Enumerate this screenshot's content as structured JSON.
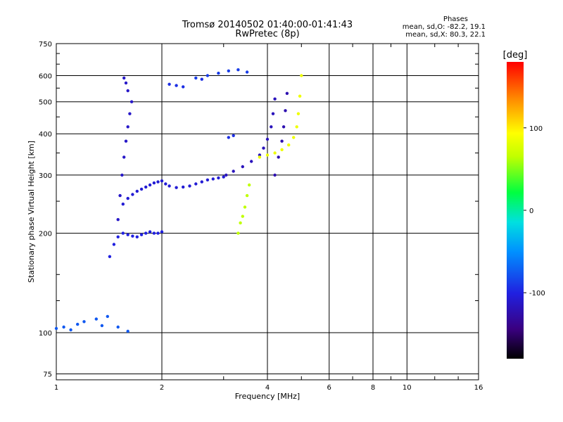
{
  "header": {
    "title": "Tromsø 20140502 01:40:00-01:41:43",
    "subtitle": "RwPretec (8p)",
    "stats_title": "Phases",
    "stats_o": "mean, sd,O: -82.2, 19.1",
    "stats_x": "mean, sd,X: 80.3, 22.1"
  },
  "chart_data": {
    "type": "scatter",
    "title": "Tromsø 20140502 01:40:00-01:41:43",
    "subtitle": "RwPretec (8p)",
    "xlabel": "Frequency [MHz]",
    "ylabel": "Stationary phase Virtual Height [km]",
    "x_scale": "log",
    "y_scale": "log",
    "xlim": [
      1,
      16
    ],
    "ylim": [
      72,
      750
    ],
    "x_ticks": [
      1,
      2,
      4,
      6,
      8,
      10,
      16
    ],
    "x_tick_labels": [
      "1",
      "2",
      "4",
      "6",
      "8",
      "10",
      "16"
    ],
    "y_ticks": [
      75,
      100,
      200,
      300,
      400,
      500,
      600,
      750
    ],
    "y_tick_labels": [
      "75",
      "100",
      "200",
      "300",
      "400",
      "500",
      "600",
      "750"
    ],
    "grid": true,
    "colorbar": {
      "label": "[deg]",
      "range": [
        -180,
        180
      ],
      "ticks": [
        100,
        0,
        -100
      ],
      "tick_labels": [
        "100",
        "0",
        "-100"
      ],
      "colormap": [
        "#000000",
        "#3a0080",
        "#2020e0",
        "#0090ff",
        "#00e0e0",
        "#00ff40",
        "#c0ff00",
        "#ffff00",
        "#ff9000",
        "#ff0000"
      ]
    },
    "traces": [
      {
        "name": "o_low_F",
        "phase": -100,
        "x": [
          1.42,
          1.46,
          1.5,
          1.55,
          1.6,
          1.65,
          1.7,
          1.75,
          1.8,
          1.85,
          1.9,
          1.95,
          2.0
        ],
        "y": [
          170,
          185,
          195,
          200,
          198,
          196,
          195,
          198,
          200,
          202,
          200,
          200,
          202
        ]
      },
      {
        "name": "o_F_band",
        "phase": -105,
        "x": [
          1.55,
          1.6,
          1.65,
          1.7,
          1.75,
          1.8,
          1.85,
          1.9,
          1.95,
          2.0,
          2.05,
          2.1,
          2.2,
          2.3,
          2.4,
          2.5,
          2.6,
          2.7,
          2.8,
          2.9,
          3.0
        ],
        "y": [
          245,
          255,
          262,
          268,
          272,
          276,
          280,
          284,
          286,
          288,
          282,
          278,
          275,
          276,
          278,
          282,
          286,
          290,
          292,
          294,
          296
        ]
      },
      {
        "name": "o_F_column",
        "phase": -110,
        "x": [
          1.5,
          1.52,
          1.54,
          1.56,
          1.58,
          1.6,
          1.62,
          1.64,
          1.6,
          1.58,
          1.56
        ],
        "y": [
          220,
          260,
          300,
          340,
          380,
          420,
          460,
          500,
          540,
          570,
          590
        ]
      },
      {
        "name": "o_F2_upper",
        "phase": -115,
        "x": [
          3.05,
          3.2,
          3.4,
          3.6,
          3.8,
          3.9,
          4.0,
          4.1,
          4.15,
          4.2
        ],
        "y": [
          300,
          308,
          318,
          330,
          345,
          362,
          385,
          420,
          460,
          510
        ]
      },
      {
        "name": "o_F2_cusp",
        "phase": -120,
        "x": [
          4.2,
          4.3,
          4.4,
          4.45,
          4.5,
          4.55
        ],
        "y": [
          300,
          340,
          380,
          420,
          470,
          530
        ]
      },
      {
        "name": "o_multihop",
        "phase": -90,
        "x": [
          2.5,
          2.7,
          2.9,
          3.1,
          3.3,
          3.5
        ],
        "y": [
          590,
          600,
          610,
          620,
          625,
          615
        ]
      },
      {
        "name": "x_F2",
        "phase": 90,
        "x": [
          3.8,
          4.0,
          4.2,
          4.4,
          4.6,
          4.75,
          4.85,
          4.9,
          4.95,
          5.0
        ],
        "y": [
          340,
          345,
          350,
          358,
          370,
          390,
          420,
          460,
          520,
          600
        ]
      },
      {
        "name": "x_low",
        "phase": 60,
        "x": [
          3.3,
          3.35,
          3.4,
          3.45,
          3.5,
          3.55
        ],
        "y": [
          200,
          215,
          225,
          240,
          260,
          280
        ]
      },
      {
        "name": "es_layer",
        "phase": -80,
        "x": [
          1.0,
          1.05,
          1.1,
          1.15,
          1.2,
          1.3,
          1.35,
          1.4,
          1.5,
          1.6
        ],
        "y": [
          103,
          104,
          102,
          106,
          108,
          110,
          105,
          112,
          104,
          101
        ]
      },
      {
        "name": "sporadic_o",
        "phase": -95,
        "x": [
          2.1,
          2.2,
          2.3,
          2.6,
          3.1,
          3.2
        ],
        "y": [
          565,
          560,
          555,
          585,
          390,
          395
        ]
      }
    ]
  }
}
